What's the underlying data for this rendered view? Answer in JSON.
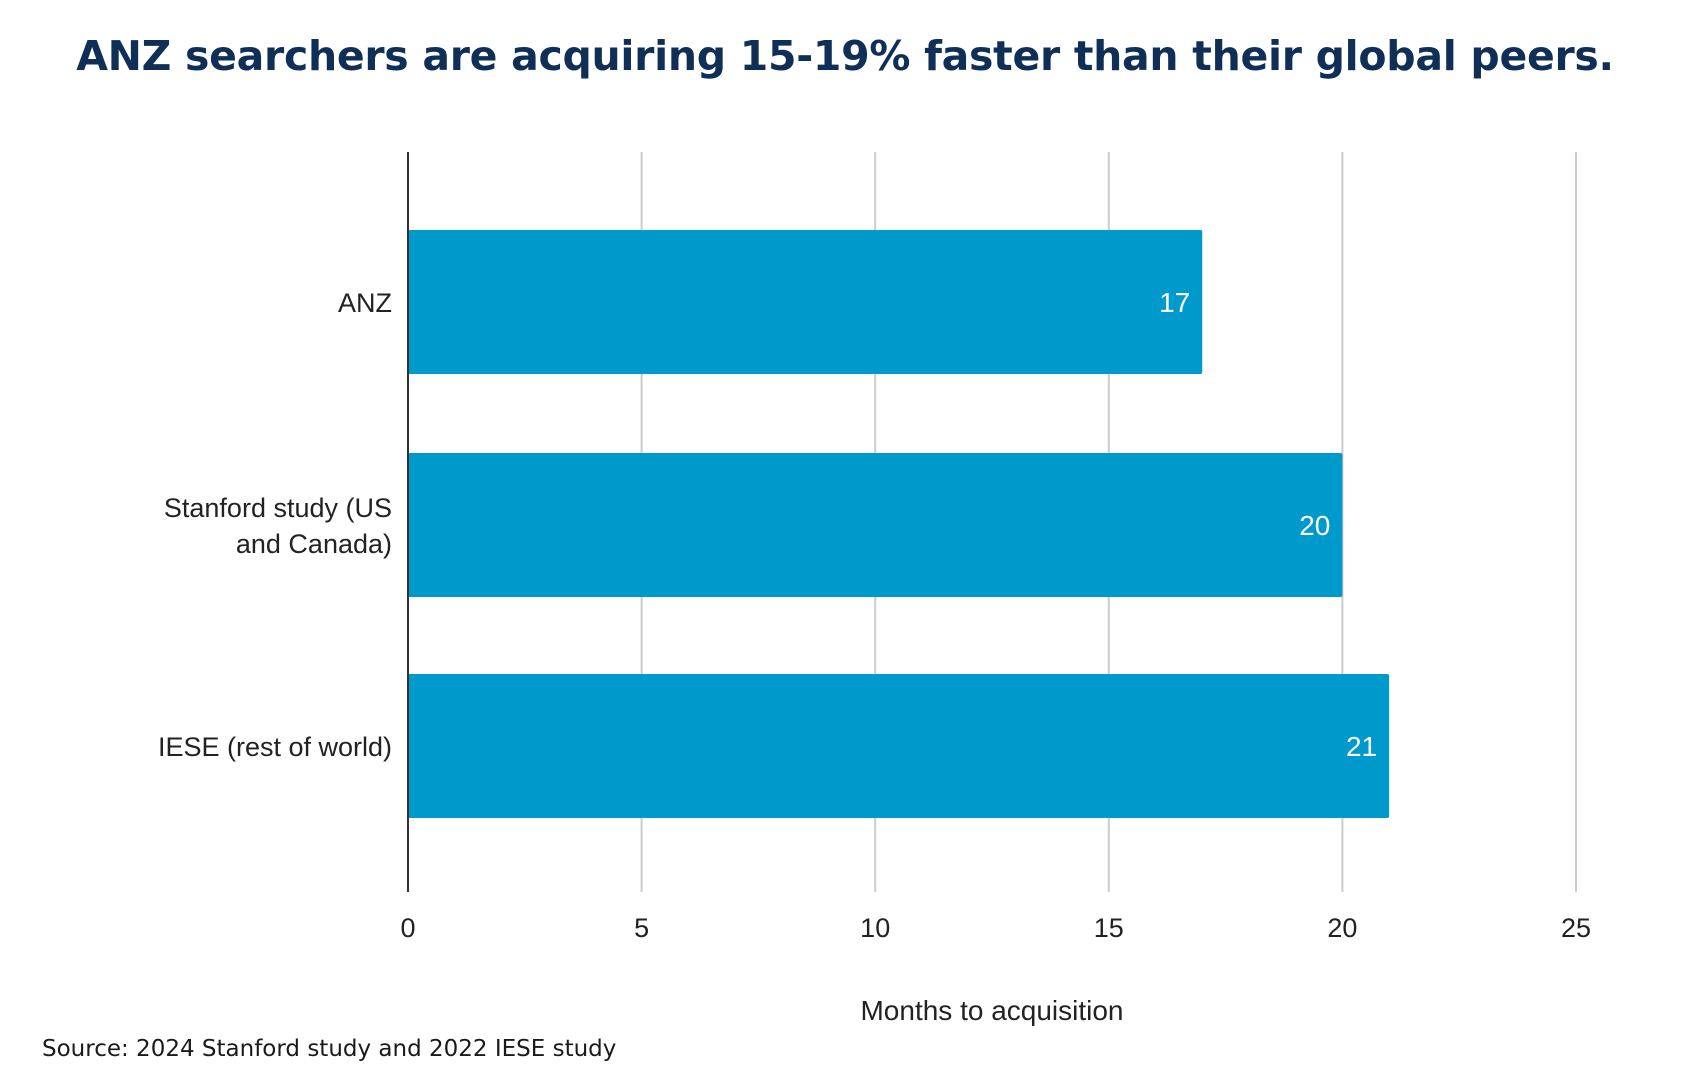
{
  "title": "ANZ searchers are acquiring 15-19% faster than their global peers.",
  "source": "Source: 2024 Stanford study and 2022 IESE study",
  "colors": {
    "title": "#0f2f57",
    "bar": "#0099cc",
    "grid": "#cccccc",
    "axis": "#333333"
  },
  "chart_data": {
    "type": "bar",
    "orientation": "horizontal",
    "categories": [
      [
        "ANZ"
      ],
      [
        "Stanford study (US",
        "and Canada)"
      ],
      [
        "IESE (rest of world)"
      ]
    ],
    "values": [
      17,
      20,
      21
    ],
    "data_labels": [
      "17",
      "20",
      "21"
    ],
    "xlabel": "Months to acquisition",
    "ylabel": "",
    "xlim": [
      0,
      25
    ],
    "xticks": [
      0,
      5,
      10,
      15,
      20,
      25
    ],
    "grid": "vertical",
    "legend": "none"
  }
}
